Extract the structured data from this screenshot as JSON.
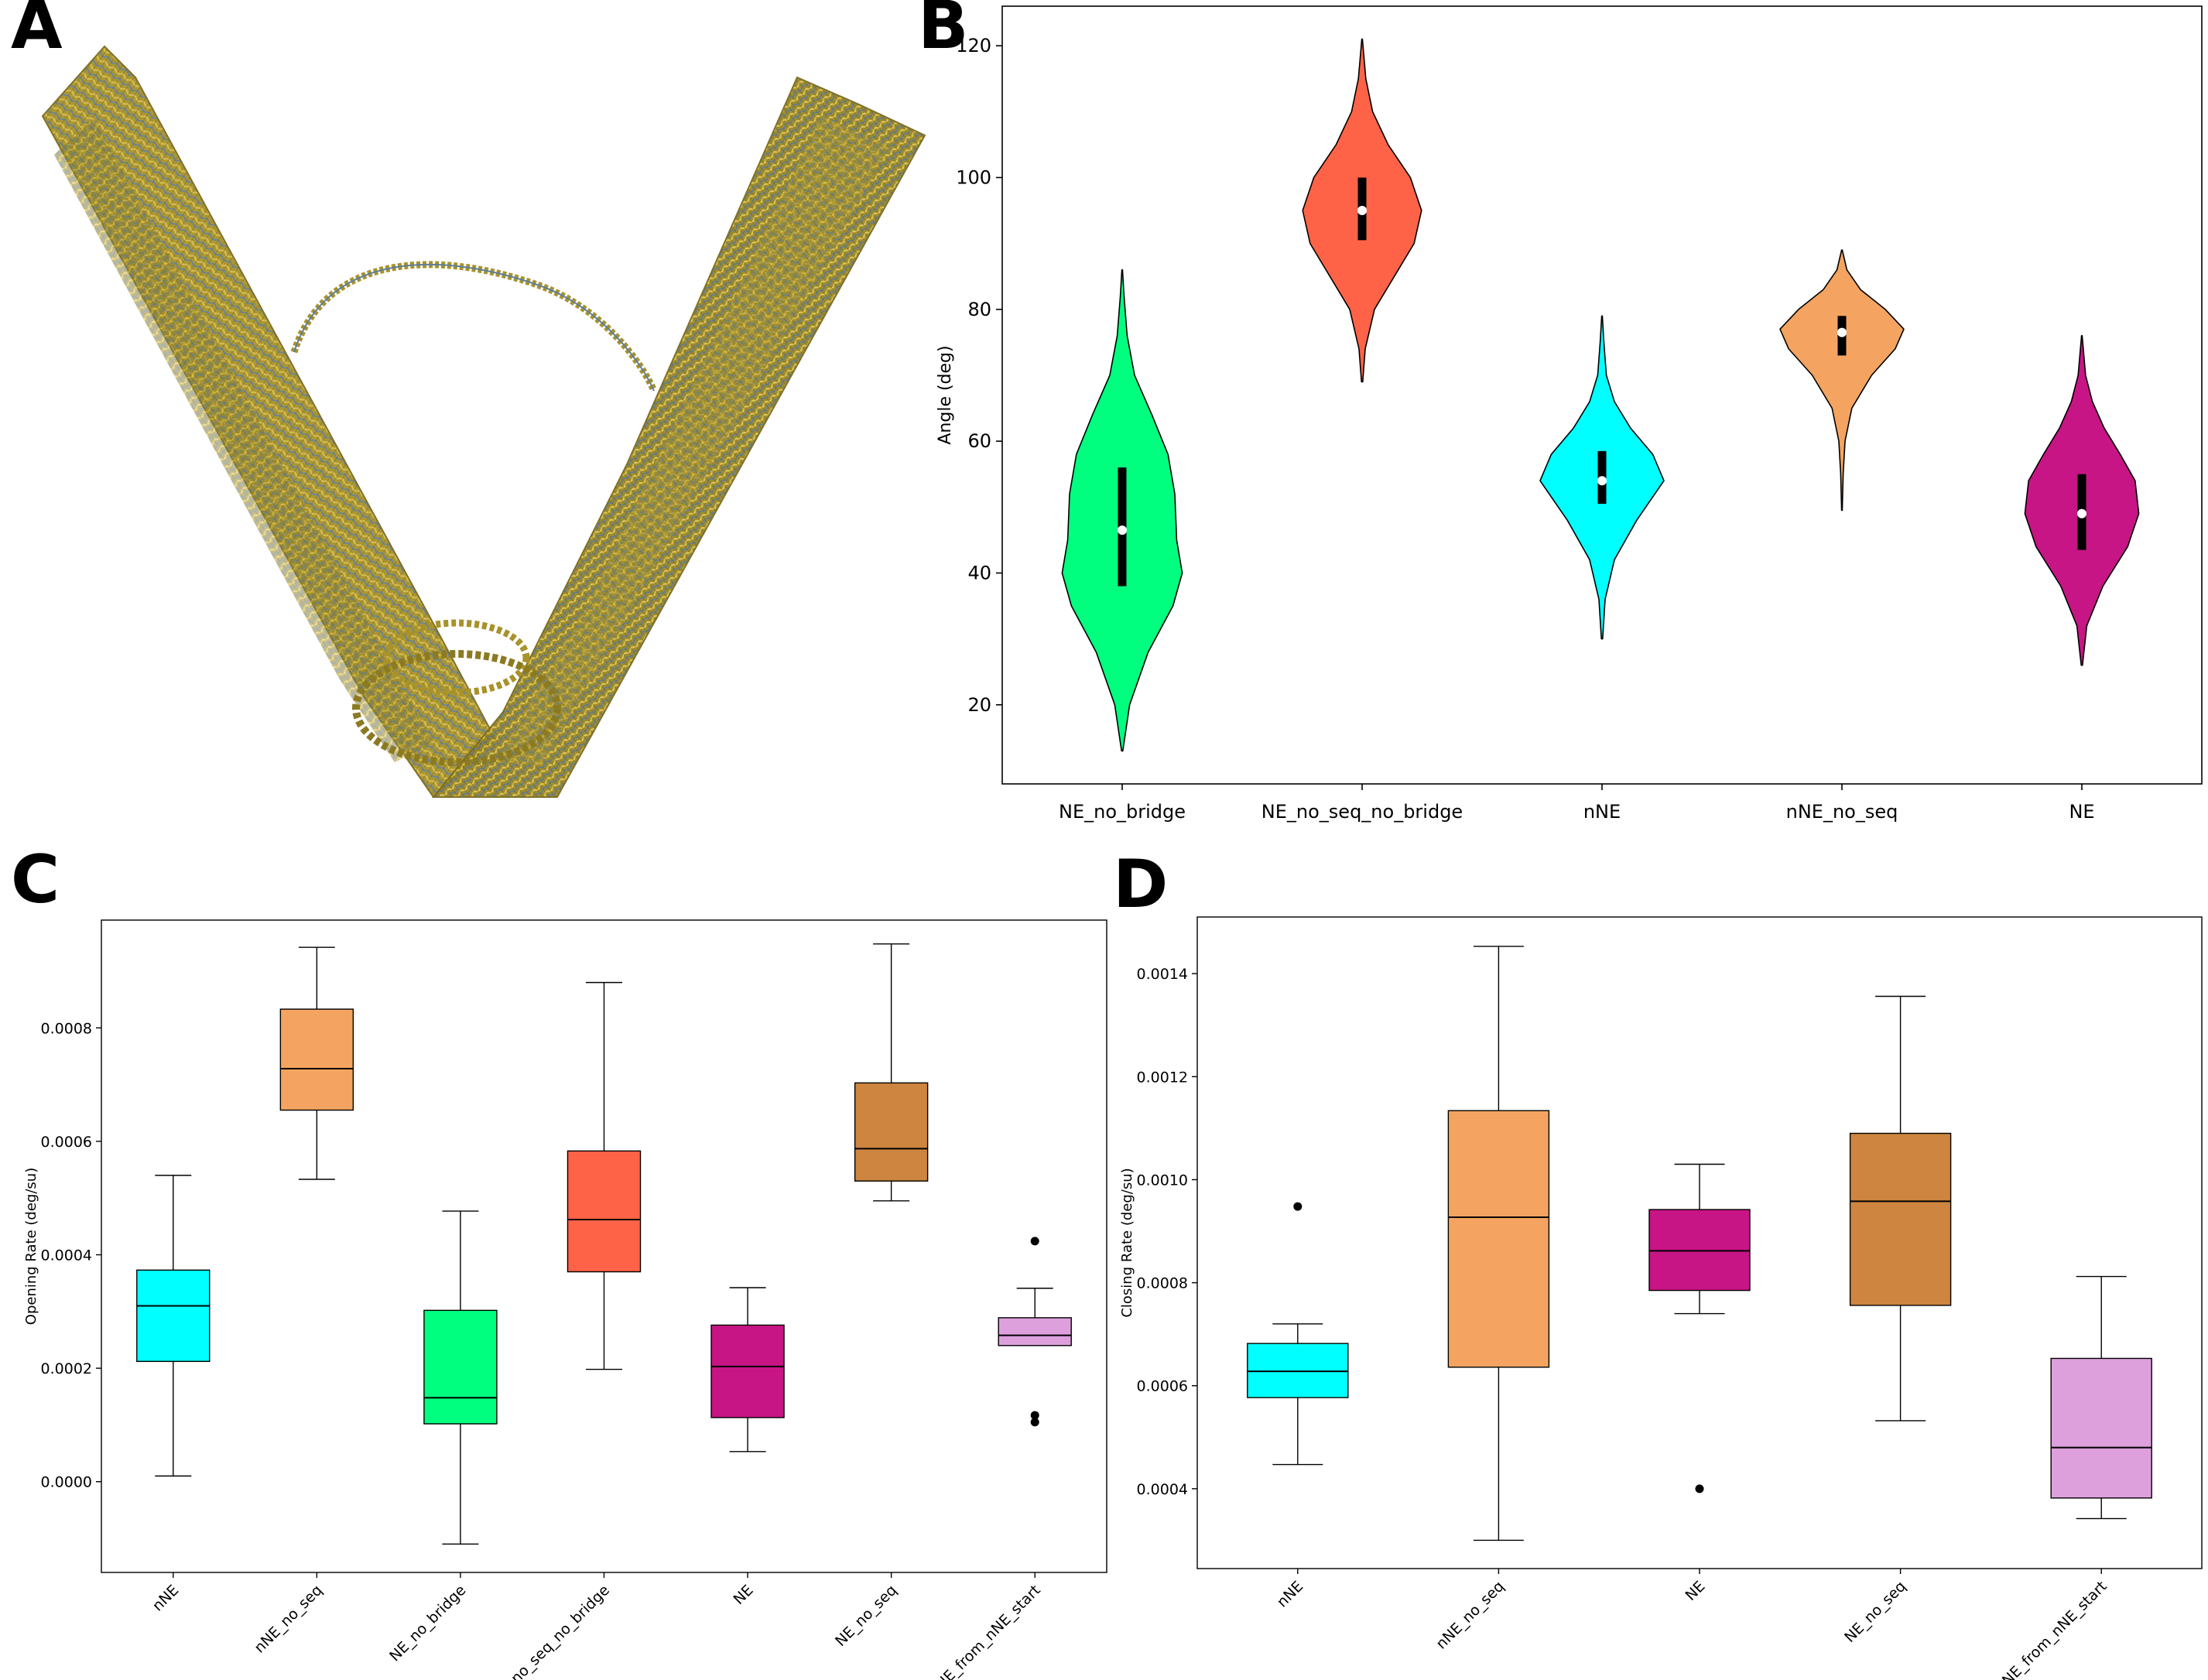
{
  "panels": {
    "a": {
      "letter": "A"
    },
    "b": {
      "letter": "B"
    },
    "c": {
      "letter": "C"
    },
    "d": {
      "letter": "D"
    }
  },
  "chart_data": [
    {
      "id": "B",
      "type": "violin",
      "title": "",
      "xlabel": "",
      "ylabel": "Angle (deg)",
      "ylim": [
        8,
        126
      ],
      "yticks": [
        20,
        40,
        60,
        80,
        100,
        120
      ],
      "grid": false,
      "categories": [
        "NE_no_bridge",
        "NE_no_seq_no_bridge",
        "nNE",
        "nNE_no_seq",
        "NE"
      ],
      "series": [
        {
          "category": "NE_no_bridge",
          "color": "#00FF7F",
          "min": 13,
          "max": 86,
          "q1": 38,
          "median": 46.5,
          "q3": 56,
          "profile": [
            [
              13,
              0.01
            ],
            [
              20,
              0.12
            ],
            [
              28,
              0.42
            ],
            [
              35,
              0.82
            ],
            [
              40,
              0.97
            ],
            [
              45,
              0.88
            ],
            [
              52,
              0.85
            ],
            [
              58,
              0.74
            ],
            [
              64,
              0.48
            ],
            [
              70,
              0.2
            ],
            [
              76,
              0.08
            ],
            [
              82,
              0.03
            ],
            [
              86,
              0.005
            ]
          ]
        },
        {
          "category": "NE_no_seq_no_bridge",
          "color": "#FF6347",
          "min": 69,
          "max": 121,
          "q1": 90.5,
          "median": 95,
          "q3": 100,
          "profile": [
            [
              69,
              0.01
            ],
            [
              74,
              0.05
            ],
            [
              80,
              0.2
            ],
            [
              85,
              0.52
            ],
            [
              90,
              0.84
            ],
            [
              95,
              0.96
            ],
            [
              100,
              0.78
            ],
            [
              105,
              0.42
            ],
            [
              110,
              0.17
            ],
            [
              115,
              0.06
            ],
            [
              121,
              0.005
            ]
          ]
        },
        {
          "category": "nNE",
          "color": "#00FFFF",
          "min": 30,
          "max": 79,
          "q1": 50.5,
          "median": 54,
          "q3": 58.5,
          "profile": [
            [
              30,
              0.01
            ],
            [
              36,
              0.05
            ],
            [
              42,
              0.2
            ],
            [
              48,
              0.56
            ],
            [
              54,
              1.0
            ],
            [
              58,
              0.82
            ],
            [
              62,
              0.46
            ],
            [
              66,
              0.2
            ],
            [
              70,
              0.07
            ],
            [
              75,
              0.03
            ],
            [
              79,
              0.005
            ]
          ]
        },
        {
          "category": "nNE_no_seq",
          "color": "#F4A460",
          "min": 49.5,
          "max": 89,
          "q1": 73,
          "median": 76.5,
          "q3": 79,
          "profile": [
            [
              49.5,
              0.005
            ],
            [
              55,
              0.02
            ],
            [
              60,
              0.05
            ],
            [
              65,
              0.16
            ],
            [
              70,
              0.48
            ],
            [
              74,
              0.86
            ],
            [
              77,
              1.0
            ],
            [
              80,
              0.7
            ],
            [
              83,
              0.3
            ],
            [
              86,
              0.08
            ],
            [
              89,
              0.005
            ]
          ]
        },
        {
          "category": "NE",
          "color": "#C71585",
          "min": 26,
          "max": 76,
          "q1": 43.5,
          "median": 49,
          "q3": 55,
          "profile": [
            [
              26,
              0.01
            ],
            [
              32,
              0.08
            ],
            [
              38,
              0.34
            ],
            [
              44,
              0.74
            ],
            [
              49,
              0.92
            ],
            [
              54,
              0.86
            ],
            [
              58,
              0.62
            ],
            [
              62,
              0.36
            ],
            [
              66,
              0.17
            ],
            [
              70,
              0.06
            ],
            [
              76,
              0.005
            ]
          ]
        }
      ]
    },
    {
      "id": "C",
      "type": "box",
      "title": "",
      "xlabel": "",
      "ylabel": "Opening Rate (deg/su)",
      "ylim": [
        -0.00016,
        0.00099
      ],
      "yticks": [
        0.0,
        0.0002,
        0.0004,
        0.0006,
        0.0008
      ],
      "ytick_labels": [
        "0.0000",
        "0.0002",
        "0.0004",
        "0.0006",
        "0.0008"
      ],
      "grid": false,
      "categories": [
        "nNE",
        "nNE_no_seq",
        "NE_no_bridge",
        "NE_no_seq_no_bridge",
        "NE",
        "NE_no_seq",
        "NE_from_nNE_start"
      ],
      "series": [
        {
          "category": "nNE",
          "color": "#00FFFF",
          "whislo": 1e-05,
          "q1": 0.000212,
          "median": 0.00031,
          "q3": 0.000373,
          "whishi": 0.00054,
          "fliers": []
        },
        {
          "category": "nNE_no_seq",
          "color": "#F4A460",
          "whislo": 0.000533,
          "q1": 0.000655,
          "median": 0.000728,
          "q3": 0.000833,
          "whishi": 0.000942,
          "fliers": []
        },
        {
          "category": "NE_no_bridge",
          "color": "#00FF7F",
          "whislo": -0.00011,
          "q1": 0.000102,
          "median": 0.000148,
          "q3": 0.000302,
          "whishi": 0.000477,
          "fliers": []
        },
        {
          "category": "NE_no_seq_no_bridge",
          "color": "#FF6347",
          "whislo": 0.000198,
          "q1": 0.00037,
          "median": 0.000462,
          "q3": 0.000583,
          "whishi": 0.00088,
          "fliers": []
        },
        {
          "category": "NE",
          "color": "#C71585",
          "whislo": 5.3e-05,
          "q1": 0.000113,
          "median": 0.000203,
          "q3": 0.000276,
          "whishi": 0.000342,
          "fliers": []
        },
        {
          "category": "NE_no_seq",
          "color": "#CD853F",
          "whislo": 0.000495,
          "q1": 0.00053,
          "median": 0.000587,
          "q3": 0.000703,
          "whishi": 0.000948,
          "fliers": []
        },
        {
          "category": "NE_from_nNE_start",
          "color": "#DDA0DD",
          "whislo": 0.00024,
          "q1": 0.00024,
          "median": 0.000258,
          "q3": 0.000289,
          "whishi": 0.000341,
          "fliers": [
            0.000424,
            0.000117,
            0.000105
          ]
        }
      ]
    },
    {
      "id": "D",
      "type": "box",
      "title": "",
      "xlabel": "",
      "ylabel": "Closing Rate (deg/su)",
      "ylim": [
        0.000245,
        0.00151
      ],
      "yticks": [
        0.0004,
        0.0006,
        0.0008,
        0.001,
        0.0012,
        0.0014
      ],
      "ytick_labels": [
        "0.0004",
        "0.0006",
        "0.0008",
        "0.0010",
        "0.0012",
        "0.0014"
      ],
      "grid": false,
      "categories": [
        "nNE",
        "nNE_no_seq",
        "NE",
        "NE_no_seq",
        "NE_from_nNE_start"
      ],
      "series": [
        {
          "category": "nNE",
          "color": "#00FFFF",
          "whislo": 0.000447,
          "q1": 0.000577,
          "median": 0.000628,
          "q3": 0.000682,
          "whishi": 0.00072,
          "fliers": [
            0.000948
          ]
        },
        {
          "category": "nNE_no_seq",
          "color": "#F4A460",
          "whislo": 0.0003,
          "q1": 0.000636,
          "median": 0.000927,
          "q3": 0.001134,
          "whishi": 0.001453,
          "fliers": []
        },
        {
          "category": "NE",
          "color": "#C71585",
          "whislo": 0.00074,
          "q1": 0.000785,
          "median": 0.000862,
          "q3": 0.000942,
          "whishi": 0.00103,
          "fliers": [
            0.0004
          ]
        },
        {
          "category": "NE_no_seq",
          "color": "#CD853F",
          "whislo": 0.000532,
          "q1": 0.000756,
          "median": 0.000958,
          "q3": 0.00109,
          "whishi": 0.001356,
          "fliers": []
        },
        {
          "category": "NE_from_nNE_start",
          "color": "#DDA0DD",
          "whislo": 0.000342,
          "q1": 0.000382,
          "median": 0.00048,
          "q3": 0.000653,
          "whishi": 0.000812,
          "fliers": []
        }
      ]
    }
  ]
}
